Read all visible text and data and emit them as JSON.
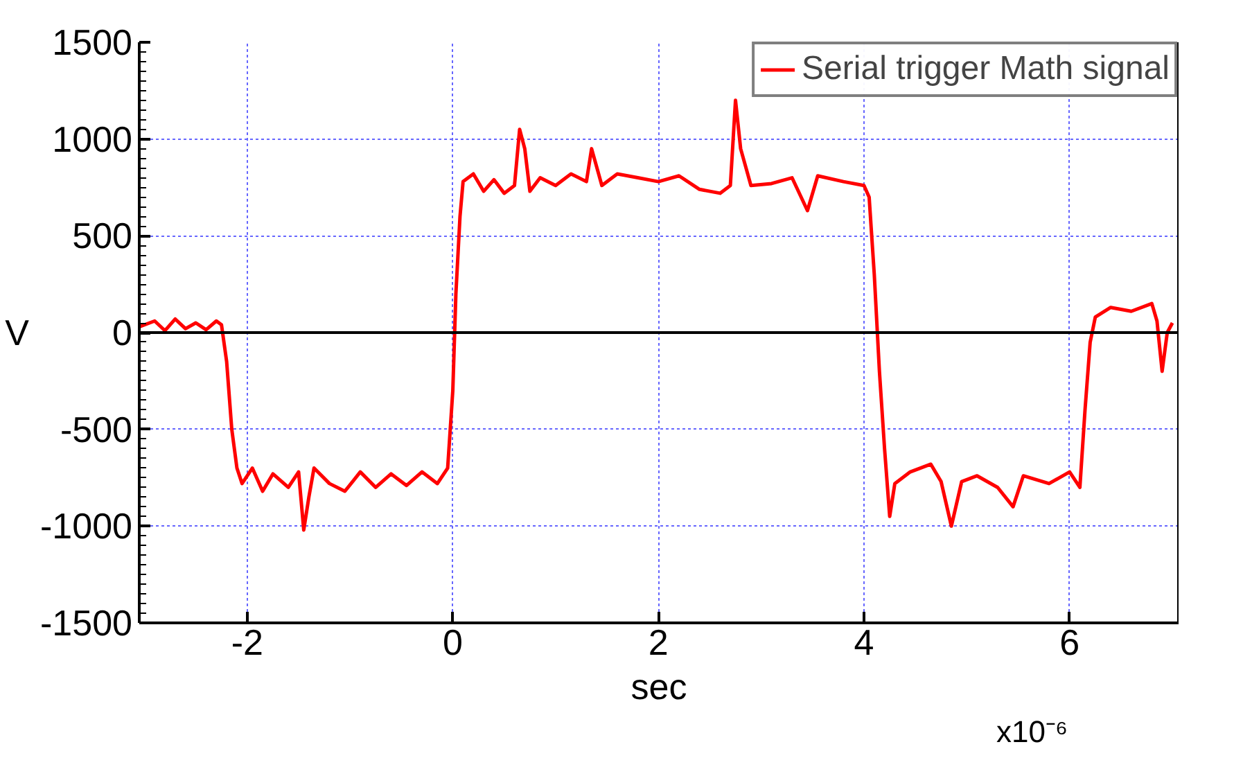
{
  "chart_data": {
    "type": "line",
    "xlabel": "sec",
    "ylabel": "V",
    "xlim": [
      -3.05,
      7.06
    ],
    "xticks": [
      -2,
      0,
      2,
      4,
      6
    ],
    "annotations": [
      "x10⁻⁶"
    ],
    "ylim": [
      -1500,
      1500
    ],
    "yticks": [
      -1500,
      -1000,
      -500,
      0,
      500,
      1000,
      1500
    ],
    "grid": true,
    "legend": "top right",
    "ref_lines": [
      {
        "axis": "y",
        "value": 0,
        "color": "#000000"
      }
    ],
    "series": [
      {
        "name": "Serial trigger Math signal",
        "color": "#ff0000",
        "x": [
          -3.05,
          -2.9,
          -2.8,
          -2.7,
          -2.6,
          -2.5,
          -2.4,
          -2.3,
          -2.25,
          -2.2,
          -2.15,
          -2.1,
          -2.05,
          -1.95,
          -1.85,
          -1.75,
          -1.6,
          -1.5,
          -1.45,
          -1.4,
          -1.35,
          -1.2,
          -1.05,
          -0.9,
          -0.75,
          -0.6,
          -0.45,
          -0.3,
          -0.15,
          -0.05,
          0,
          0.03,
          0.07,
          0.1,
          0.2,
          0.3,
          0.4,
          0.5,
          0.6,
          0.65,
          0.7,
          0.75,
          0.85,
          1.0,
          1.15,
          1.3,
          1.35,
          1.45,
          1.6,
          1.8,
          2.0,
          2.2,
          2.4,
          2.6,
          2.7,
          2.75,
          2.8,
          2.9,
          3.1,
          3.3,
          3.45,
          3.55,
          3.8,
          4.0,
          4.05,
          4.1,
          4.15,
          4.2,
          4.25,
          4.3,
          4.45,
          4.65,
          4.75,
          4.85,
          4.95,
          5.1,
          5.3,
          5.45,
          5.55,
          5.8,
          6.0,
          6.1,
          6.15,
          6.2,
          6.25,
          6.4,
          6.6,
          6.8,
          6.85,
          6.9,
          6.95,
          7.0
        ],
        "values": [
          30,
          60,
          10,
          70,
          20,
          50,
          15,
          60,
          40,
          -150,
          -500,
          -700,
          -780,
          -700,
          -820,
          -730,
          -800,
          -720,
          -1020,
          -850,
          -700,
          -780,
          -820,
          -720,
          -800,
          -730,
          -790,
          -720,
          -780,
          -700,
          -300,
          200,
          600,
          780,
          820,
          730,
          790,
          720,
          760,
          1050,
          950,
          730,
          800,
          760,
          820,
          780,
          950,
          760,
          820,
          800,
          780,
          810,
          740,
          720,
          760,
          1200,
          950,
          760,
          770,
          800,
          630,
          810,
          780,
          760,
          700,
          300,
          -200,
          -600,
          -950,
          -780,
          -720,
          -680,
          -770,
          -1000,
          -770,
          -740,
          -800,
          -900,
          -740,
          -780,
          -720,
          -800,
          -400,
          -50,
          80,
          130,
          110,
          150,
          60,
          -200,
          0,
          50
        ]
      }
    ]
  }
}
